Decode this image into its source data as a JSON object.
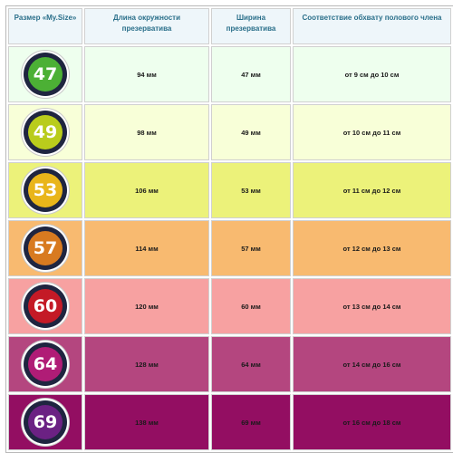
{
  "headers": [
    "Размер «My.Size»",
    "Длина окружности презерватива",
    "Ширина презерватива",
    "Соответствие обхвату полового члена"
  ],
  "rows": [
    {
      "size": "47",
      "length": "94 мм",
      "width": "47 мм",
      "girth": "от 9 см до 10 см",
      "row_color": "#eeffee",
      "badge_color": "#4cb035"
    },
    {
      "size": "49",
      "length": "98 мм",
      "width": "49 мм",
      "girth": "от 10 см до 11 см",
      "row_color": "#f8ffd8",
      "badge_color": "#b9cc1c"
    },
    {
      "size": "53",
      "length": "106 мм",
      "width": "53 мм",
      "girth": "от 11 см до 12 см",
      "row_color": "#ecf27a",
      "badge_color": "#e9b51a"
    },
    {
      "size": "57",
      "length": "114 мм",
      "width": "57 мм",
      "girth": "от 12 см до 13 см",
      "row_color": "#f8ba70",
      "badge_color": "#d87a20"
    },
    {
      "size": "60",
      "length": "120 мм",
      "width": "60 мм",
      "girth": "от 13 см до 14 см",
      "row_color": "#f7a1a1",
      "badge_color": "#c41a26"
    },
    {
      "size": "64",
      "length": "128 мм",
      "width": "64 мм",
      "girth": "от 14 см до 16 см",
      "row_color": "#b4467f",
      "badge_color": "#b01c76"
    },
    {
      "size": "69",
      "length": "138 мм",
      "width": "69 мм",
      "girth": "от 16 см до 18 см",
      "row_color": "#930e62",
      "badge_color": "#6b2183"
    }
  ]
}
